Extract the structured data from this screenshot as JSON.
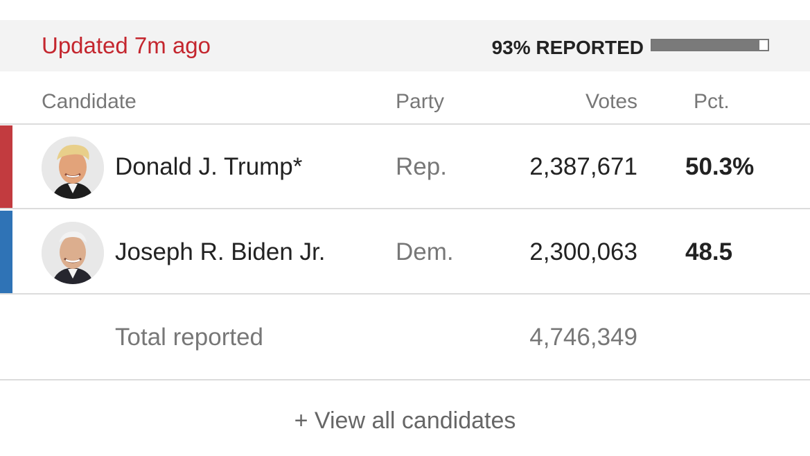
{
  "status": {
    "updated": "Updated 7m ago",
    "reported_label": "93% REPORTED",
    "reported_fraction": 0.93
  },
  "headers": {
    "candidate": "Candidate",
    "party": "Party",
    "votes": "Votes",
    "pct": "Pct."
  },
  "candidates": [
    {
      "name": "Donald J. Trump*",
      "party": "Rep.",
      "votes": "2,387,671",
      "pct": "50.3%",
      "color": "#c23b3f"
    },
    {
      "name": "Joseph R. Biden Jr.",
      "party": "Dem.",
      "votes": "2,300,063",
      "pct": "48.5",
      "color": "#2f73b6"
    }
  ],
  "total": {
    "label": "Total reported",
    "votes": "4,746,349"
  },
  "view_all": "+ View all candidates"
}
